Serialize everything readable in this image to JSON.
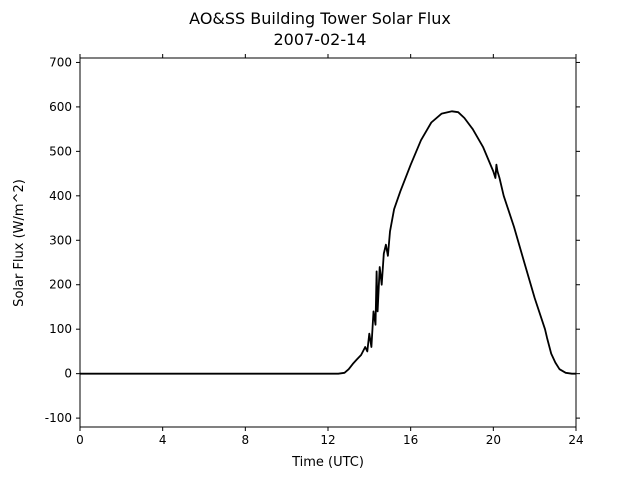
{
  "chart_data": {
    "type": "line",
    "title": "AO&SS Building Tower Solar Flux",
    "subtitle": "2007-02-14",
    "xlabel": "Time (UTC)",
    "ylabel": "Solar Flux (W/m^2)",
    "xlim": [
      0,
      24
    ],
    "ylim": [
      -120,
      710
    ],
    "xticks": [
      0,
      4,
      8,
      12,
      16,
      20,
      24
    ],
    "yticks": [
      -100,
      0,
      100,
      200,
      300,
      400,
      500,
      600,
      700
    ],
    "grid": false,
    "line_color": "#000000",
    "series": [
      {
        "x": [
          0,
          12.5,
          12.8,
          13.0,
          13.2,
          13.4,
          13.6,
          13.8,
          13.9,
          14.0,
          14.1,
          14.2,
          14.3,
          14.35,
          14.4,
          14.5,
          14.6,
          14.7,
          14.8,
          14.9,
          15.0,
          15.2,
          15.5,
          16.0,
          16.5,
          17.0,
          17.5,
          18.0,
          18.3,
          18.6,
          19.0,
          19.5,
          20.0,
          20.1,
          20.15,
          20.2,
          20.3,
          20.5,
          21.0,
          21.5,
          22.0,
          22.5,
          22.6,
          22.8,
          23.0,
          23.2,
          23.5,
          23.8,
          24.0
        ],
        "y": [
          0,
          0,
          2,
          10,
          22,
          32,
          42,
          60,
          50,
          90,
          60,
          140,
          110,
          230,
          140,
          240,
          200,
          270,
          290,
          265,
          320,
          370,
          410,
          470,
          525,
          565,
          585,
          590,
          588,
          575,
          550,
          510,
          455,
          440,
          470,
          455,
          440,
          400,
          330,
          250,
          170,
          100,
          80,
          45,
          25,
          10,
          2,
          0,
          0
        ]
      }
    ]
  }
}
